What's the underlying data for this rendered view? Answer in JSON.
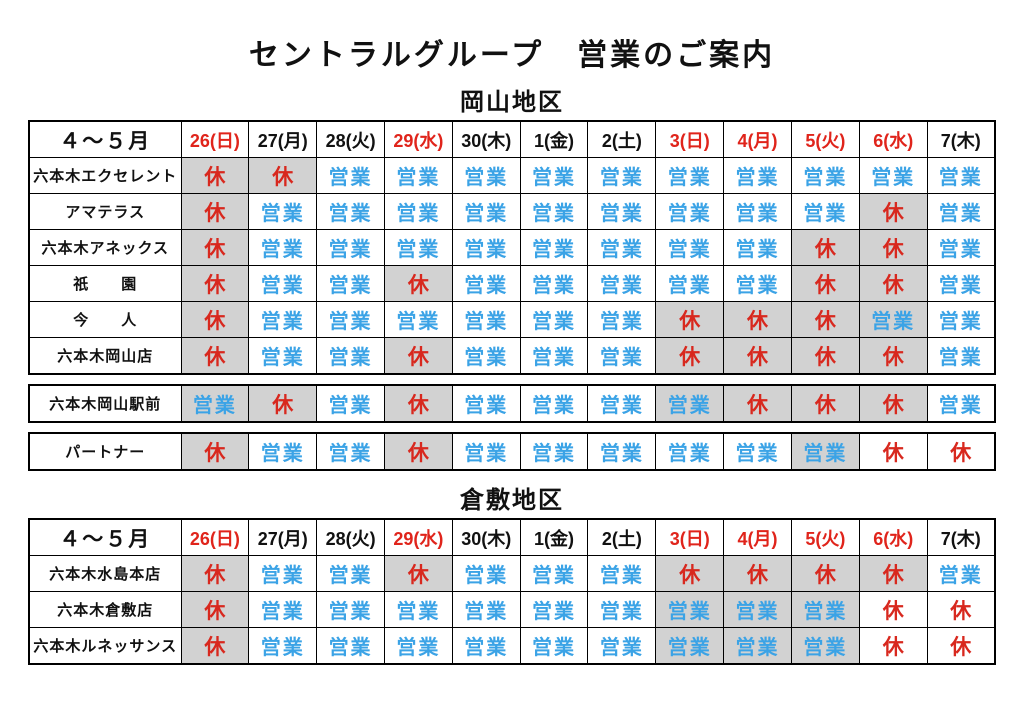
{
  "page": {
    "title": "セントラルグループ　営業のご案内"
  },
  "calendar": {
    "period_label": "４～５月",
    "dates": [
      {
        "text": "26(日)",
        "red": true
      },
      {
        "text": "27(月)",
        "red": false
      },
      {
        "text": "28(火)",
        "red": false
      },
      {
        "text": "29(水)",
        "red": true
      },
      {
        "text": "30(木)",
        "red": false
      },
      {
        "text": "1(金)",
        "red": false
      },
      {
        "text": "2(土)",
        "red": false
      },
      {
        "text": "3(日)",
        "red": true
      },
      {
        "text": "4(月)",
        "red": true
      },
      {
        "text": "5(火)",
        "red": true
      },
      {
        "text": "6(水)",
        "red": true
      },
      {
        "text": "7(木)",
        "red": false
      }
    ]
  },
  "legend": {
    "open": "営業",
    "closed": "休"
  },
  "colors": {
    "open_text": "#3ba3e6",
    "closed_text": "#d8281e",
    "holiday_date": "#e0241b",
    "weekday_date": "#111111",
    "gray_cell": "#d2d2d2",
    "border": "#000000"
  },
  "sections": [
    {
      "heading": "岡山地区",
      "blocks": [
        {
          "with_header": true,
          "rows": [
            {
              "store": "六本木エクセレント",
              "cells": [
                [
                  "休",
                  1
                ],
                [
                  "休",
                  1
                ],
                [
                  "営業",
                  0
                ],
                [
                  "営業",
                  0
                ],
                [
                  "営業",
                  0
                ],
                [
                  "営業",
                  0
                ],
                [
                  "営業",
                  0
                ],
                [
                  "営業",
                  0
                ],
                [
                  "営業",
                  0
                ],
                [
                  "営業",
                  0
                ],
                [
                  "営業",
                  0
                ],
                [
                  "営業",
                  0
                ]
              ]
            },
            {
              "store": "アマテラス",
              "cells": [
                [
                  "休",
                  1
                ],
                [
                  "営業",
                  0
                ],
                [
                  "営業",
                  0
                ],
                [
                  "営業",
                  0
                ],
                [
                  "営業",
                  0
                ],
                [
                  "営業",
                  0
                ],
                [
                  "営業",
                  0
                ],
                [
                  "営業",
                  0
                ],
                [
                  "営業",
                  0
                ],
                [
                  "営業",
                  0
                ],
                [
                  "休",
                  1
                ],
                [
                  "営業",
                  0
                ]
              ]
            },
            {
              "store": "六本木アネックス",
              "cells": [
                [
                  "休",
                  1
                ],
                [
                  "営業",
                  0
                ],
                [
                  "営業",
                  0
                ],
                [
                  "営業",
                  0
                ],
                [
                  "営業",
                  0
                ],
                [
                  "営業",
                  0
                ],
                [
                  "営業",
                  0
                ],
                [
                  "営業",
                  0
                ],
                [
                  "営業",
                  0
                ],
                [
                  "休",
                  1
                ],
                [
                  "休",
                  1
                ],
                [
                  "営業",
                  0
                ]
              ]
            },
            {
              "store": "祇　　園",
              "cells": [
                [
                  "休",
                  1
                ],
                [
                  "営業",
                  0
                ],
                [
                  "営業",
                  0
                ],
                [
                  "休",
                  1
                ],
                [
                  "営業",
                  0
                ],
                [
                  "営業",
                  0
                ],
                [
                  "営業",
                  0
                ],
                [
                  "営業",
                  0
                ],
                [
                  "営業",
                  0
                ],
                [
                  "休",
                  1
                ],
                [
                  "休",
                  1
                ],
                [
                  "営業",
                  0
                ]
              ]
            },
            {
              "store": "今　　人",
              "cells": [
                [
                  "休",
                  1
                ],
                [
                  "営業",
                  0
                ],
                [
                  "営業",
                  0
                ],
                [
                  "営業",
                  0
                ],
                [
                  "営業",
                  0
                ],
                [
                  "営業",
                  0
                ],
                [
                  "営業",
                  0
                ],
                [
                  "休",
                  1
                ],
                [
                  "休",
                  1
                ],
                [
                  "休",
                  1
                ],
                [
                  "営業",
                  1
                ],
                [
                  "営業",
                  0
                ]
              ]
            },
            {
              "store": "六本木岡山店",
              "cells": [
                [
                  "休",
                  1
                ],
                [
                  "営業",
                  0
                ],
                [
                  "営業",
                  0
                ],
                [
                  "休",
                  1
                ],
                [
                  "営業",
                  0
                ],
                [
                  "営業",
                  0
                ],
                [
                  "営業",
                  0
                ],
                [
                  "休",
                  1
                ],
                [
                  "休",
                  1
                ],
                [
                  "休",
                  1
                ],
                [
                  "休",
                  1
                ],
                [
                  "営業",
                  0
                ]
              ]
            }
          ]
        },
        {
          "with_header": false,
          "rows": [
            {
              "store": "六本木岡山駅前",
              "cells": [
                [
                  "営業",
                  1
                ],
                [
                  "休",
                  1
                ],
                [
                  "営業",
                  0
                ],
                [
                  "休",
                  1
                ],
                [
                  "営業",
                  0
                ],
                [
                  "営業",
                  0
                ],
                [
                  "営業",
                  0
                ],
                [
                  "営業",
                  1
                ],
                [
                  "休",
                  1
                ],
                [
                  "休",
                  1
                ],
                [
                  "休",
                  1
                ],
                [
                  "営業",
                  0
                ]
              ]
            }
          ]
        },
        {
          "with_header": false,
          "rows": [
            {
              "store": "パートナー",
              "cells": [
                [
                  "休",
                  1
                ],
                [
                  "営業",
                  0
                ],
                [
                  "営業",
                  0
                ],
                [
                  "休",
                  1
                ],
                [
                  "営業",
                  0
                ],
                [
                  "営業",
                  0
                ],
                [
                  "営業",
                  0
                ],
                [
                  "営業",
                  0
                ],
                [
                  "営業",
                  0
                ],
                [
                  "営業",
                  1
                ],
                [
                  "休",
                  0
                ],
                [
                  "休",
                  0
                ]
              ]
            }
          ]
        }
      ]
    },
    {
      "heading": "倉敷地区",
      "blocks": [
        {
          "with_header": true,
          "rows": [
            {
              "store": "六本木水島本店",
              "cells": [
                [
                  "休",
                  1
                ],
                [
                  "営業",
                  0
                ],
                [
                  "営業",
                  0
                ],
                [
                  "休",
                  1
                ],
                [
                  "営業",
                  0
                ],
                [
                  "営業",
                  0
                ],
                [
                  "営業",
                  0
                ],
                [
                  "休",
                  1
                ],
                [
                  "休",
                  1
                ],
                [
                  "休",
                  1
                ],
                [
                  "休",
                  1
                ],
                [
                  "営業",
                  0
                ]
              ]
            },
            {
              "store": "六本木倉敷店",
              "cells": [
                [
                  "休",
                  1
                ],
                [
                  "営業",
                  0
                ],
                [
                  "営業",
                  0
                ],
                [
                  "営業",
                  0
                ],
                [
                  "営業",
                  0
                ],
                [
                  "営業",
                  0
                ],
                [
                  "営業",
                  0
                ],
                [
                  "営業",
                  1
                ],
                [
                  "営業",
                  1
                ],
                [
                  "営業",
                  1
                ],
                [
                  "休",
                  0
                ],
                [
                  "休",
                  0
                ]
              ]
            },
            {
              "store": "六本木ルネッサンス",
              "cells": [
                [
                  "休",
                  1
                ],
                [
                  "営業",
                  0
                ],
                [
                  "営業",
                  0
                ],
                [
                  "営業",
                  0
                ],
                [
                  "営業",
                  0
                ],
                [
                  "営業",
                  0
                ],
                [
                  "営業",
                  0
                ],
                [
                  "営業",
                  1
                ],
                [
                  "営業",
                  1
                ],
                [
                  "営業",
                  1
                ],
                [
                  "休",
                  0
                ],
                [
                  "休",
                  0
                ]
              ]
            }
          ]
        }
      ]
    }
  ]
}
